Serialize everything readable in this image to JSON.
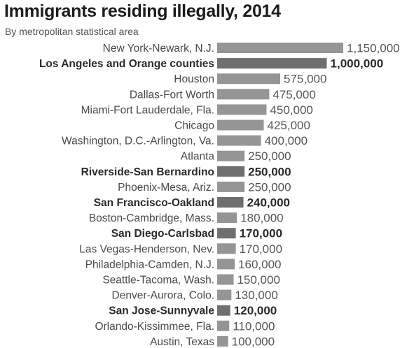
{
  "title": "Immigrants residing illegally, 2014",
  "subtitle": "By metropolitan statistical area",
  "colors": {
    "bar": "#959595",
    "bar_highlight": "#6f6f6f"
  },
  "chart_data": {
    "type": "bar",
    "orientation": "horizontal",
    "title": "Immigrants residing illegally, 2014",
    "subtitle": "By metropolitan statistical area",
    "xlim": [
      0,
      1150000
    ],
    "grid": false,
    "categories": [
      "New York-Newark, N.J.",
      "Los Angeles and Orange counties",
      "Houston",
      "Dallas-Fort Worth",
      "Miami-Fort Lauderdale, Fla.",
      "Chicago",
      "Washington, D.C.-Arlington, Va.",
      "Atlanta",
      "Riverside-San Bernardino",
      "Phoenix-Mesa, Ariz.",
      "San Francisco-Oakland",
      "Boston-Cambridge, Mass.",
      "San Diego-Carlsbad",
      "Las Vegas-Henderson, Nev.",
      "Philadelphia-Camden, N.J.",
      "Seattle-Tacoma, Wash.",
      "Denver-Aurora, Colo.",
      "San Jose-Sunnyvale",
      "Orlando-Kissimmee, Fla.",
      "Austin, Texas"
    ],
    "values": [
      1150000,
      1000000,
      575000,
      475000,
      450000,
      425000,
      400000,
      250000,
      250000,
      250000,
      240000,
      180000,
      170000,
      170000,
      160000,
      150000,
      130000,
      120000,
      110000,
      100000
    ],
    "value_labels": [
      "1,150,000",
      "1,000,000",
      "575,000",
      "475,000",
      "450,000",
      "425,000",
      "400,000",
      "250,000",
      "250,000",
      "250,000",
      "240,000",
      "180,000",
      "170,000",
      "170,000",
      "160,000",
      "150,000",
      "130,000",
      "120,000",
      "110,000",
      "100,000"
    ],
    "highlighted": [
      false,
      true,
      false,
      false,
      false,
      false,
      false,
      false,
      true,
      false,
      true,
      false,
      true,
      false,
      false,
      false,
      false,
      true,
      false,
      false
    ]
  }
}
